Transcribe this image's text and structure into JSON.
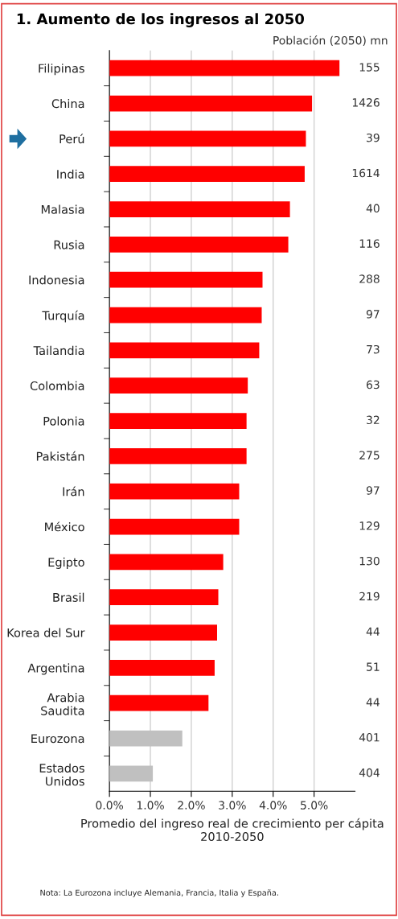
{
  "chart_data": {
    "type": "bar",
    "orientation": "horizontal",
    "title": "1. Aumento de los ingresos al 2050",
    "categories": [
      "Filipinas",
      "China",
      "Perú",
      "India",
      "Malasia",
      "Rusia",
      "Indonesia",
      "Turquía",
      "Tailandia",
      "Colombia",
      "Polonia",
      "Pakistán",
      "Irán",
      "México",
      "Egipto",
      "Brasil",
      "Korea del Sur",
      "Argentina",
      "Arabia\nSaudita",
      "Eurozona",
      "Estados\nUnidos"
    ],
    "values": [
      5.62,
      4.95,
      4.8,
      4.77,
      4.41,
      4.37,
      3.74,
      3.72,
      3.66,
      3.38,
      3.35,
      3.35,
      3.17,
      3.17,
      2.78,
      2.66,
      2.63,
      2.57,
      2.42,
      1.78,
      1.06
    ],
    "colors": [
      "#ff0000",
      "#ff0000",
      "#ff0000",
      "#ff0000",
      "#ff0000",
      "#ff0000",
      "#ff0000",
      "#ff0000",
      "#ff0000",
      "#ff0000",
      "#ff0000",
      "#ff0000",
      "#ff0000",
      "#ff0000",
      "#ff0000",
      "#ff0000",
      "#ff0000",
      "#ff0000",
      "#ff0000",
      "#c0c0c0",
      "#c0c0c0"
    ],
    "xlim": [
      0,
      6
    ],
    "xticks": [
      {
        "value": 0,
        "label": "0.0%"
      },
      {
        "value": 1,
        "label": "1.0%"
      },
      {
        "value": 2,
        "label": "2.0%"
      },
      {
        "value": 3,
        "label": "3.0%"
      },
      {
        "value": 4,
        "label": "4.0%"
      },
      {
        "value": 5,
        "label": "5.0%"
      }
    ],
    "xlabel": "Promedio del ingreso real de crecimiento per cápita\n2010-2050",
    "grid": "x",
    "annotations": [
      "Población (2050) mn",
      "155",
      "1426",
      "39",
      "1614",
      "40",
      "116",
      "288",
      "97",
      "73",
      "63",
      "32",
      "275",
      "97",
      "129",
      "130",
      "219",
      "44",
      "51",
      "44",
      "401",
      "404",
      "Nota: La Eurozona incluye Alemania, Francia, Italia y España."
    ]
  }
}
